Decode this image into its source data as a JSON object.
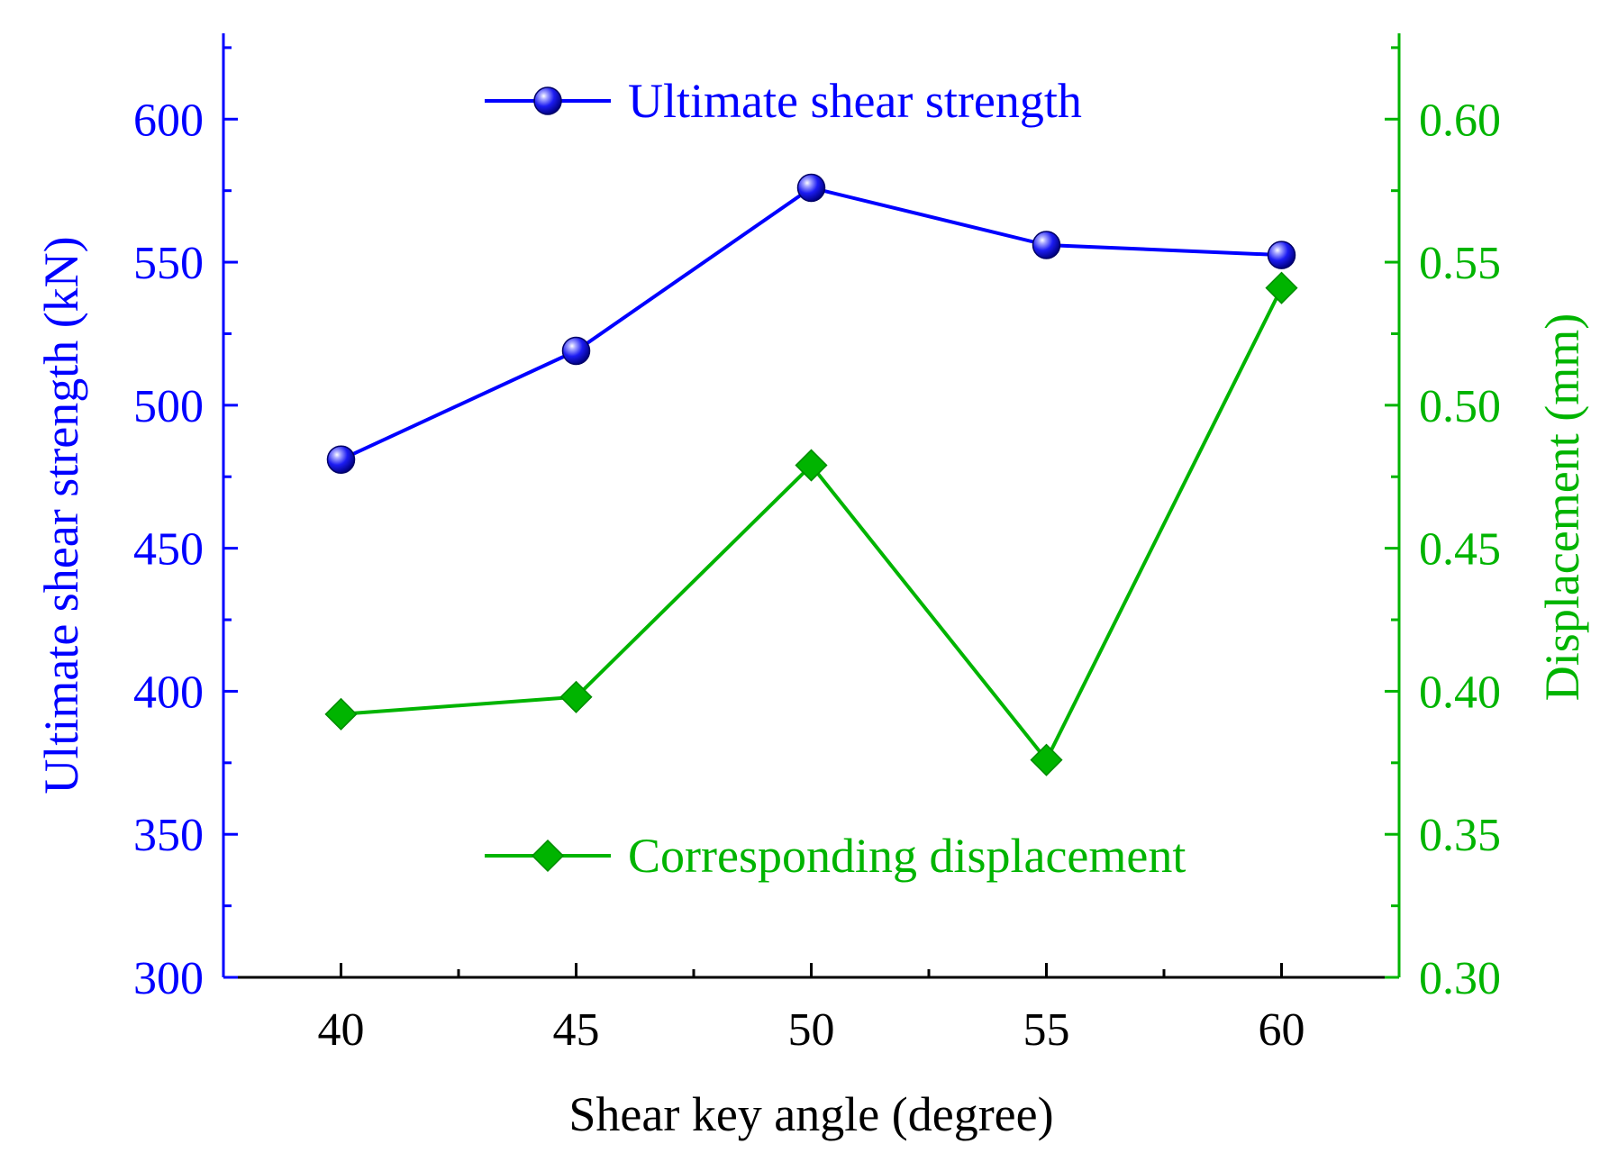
{
  "chart_data": {
    "type": "line",
    "x": [
      40,
      45,
      50,
      55,
      60
    ],
    "xlabel": "Shear key angle (degree)",
    "xticks": [
      "40",
      "45",
      "50",
      "55",
      "60"
    ],
    "xlim": [
      37.5,
      62.5
    ],
    "series": [
      {
        "name": "Ultimate shear strength",
        "axis": "left",
        "marker": "sphere",
        "color": "#0000ff",
        "values": [
          481,
          519,
          576,
          556,
          552.5
        ]
      },
      {
        "name": "Corresponding displacement",
        "axis": "right",
        "marker": "diamond",
        "color": "#00b400",
        "values": [
          0.392,
          0.398,
          0.479,
          0.376,
          0.541
        ]
      }
    ],
    "y_left": {
      "label": "Ultimate shear strength (kN)",
      "ylim": [
        300,
        630
      ],
      "ticks": [
        "300",
        "350",
        "400",
        "450",
        "500",
        "550",
        "600"
      ],
      "color": "#0000ff"
    },
    "y_right": {
      "label": "Displacement (mm)",
      "ylim": [
        0.3,
        0.63
      ],
      "ticks": [
        "0.30",
        "0.35",
        "0.40",
        "0.45",
        "0.50",
        "0.55",
        "0.60"
      ],
      "color": "#00b400"
    },
    "grid": false
  }
}
